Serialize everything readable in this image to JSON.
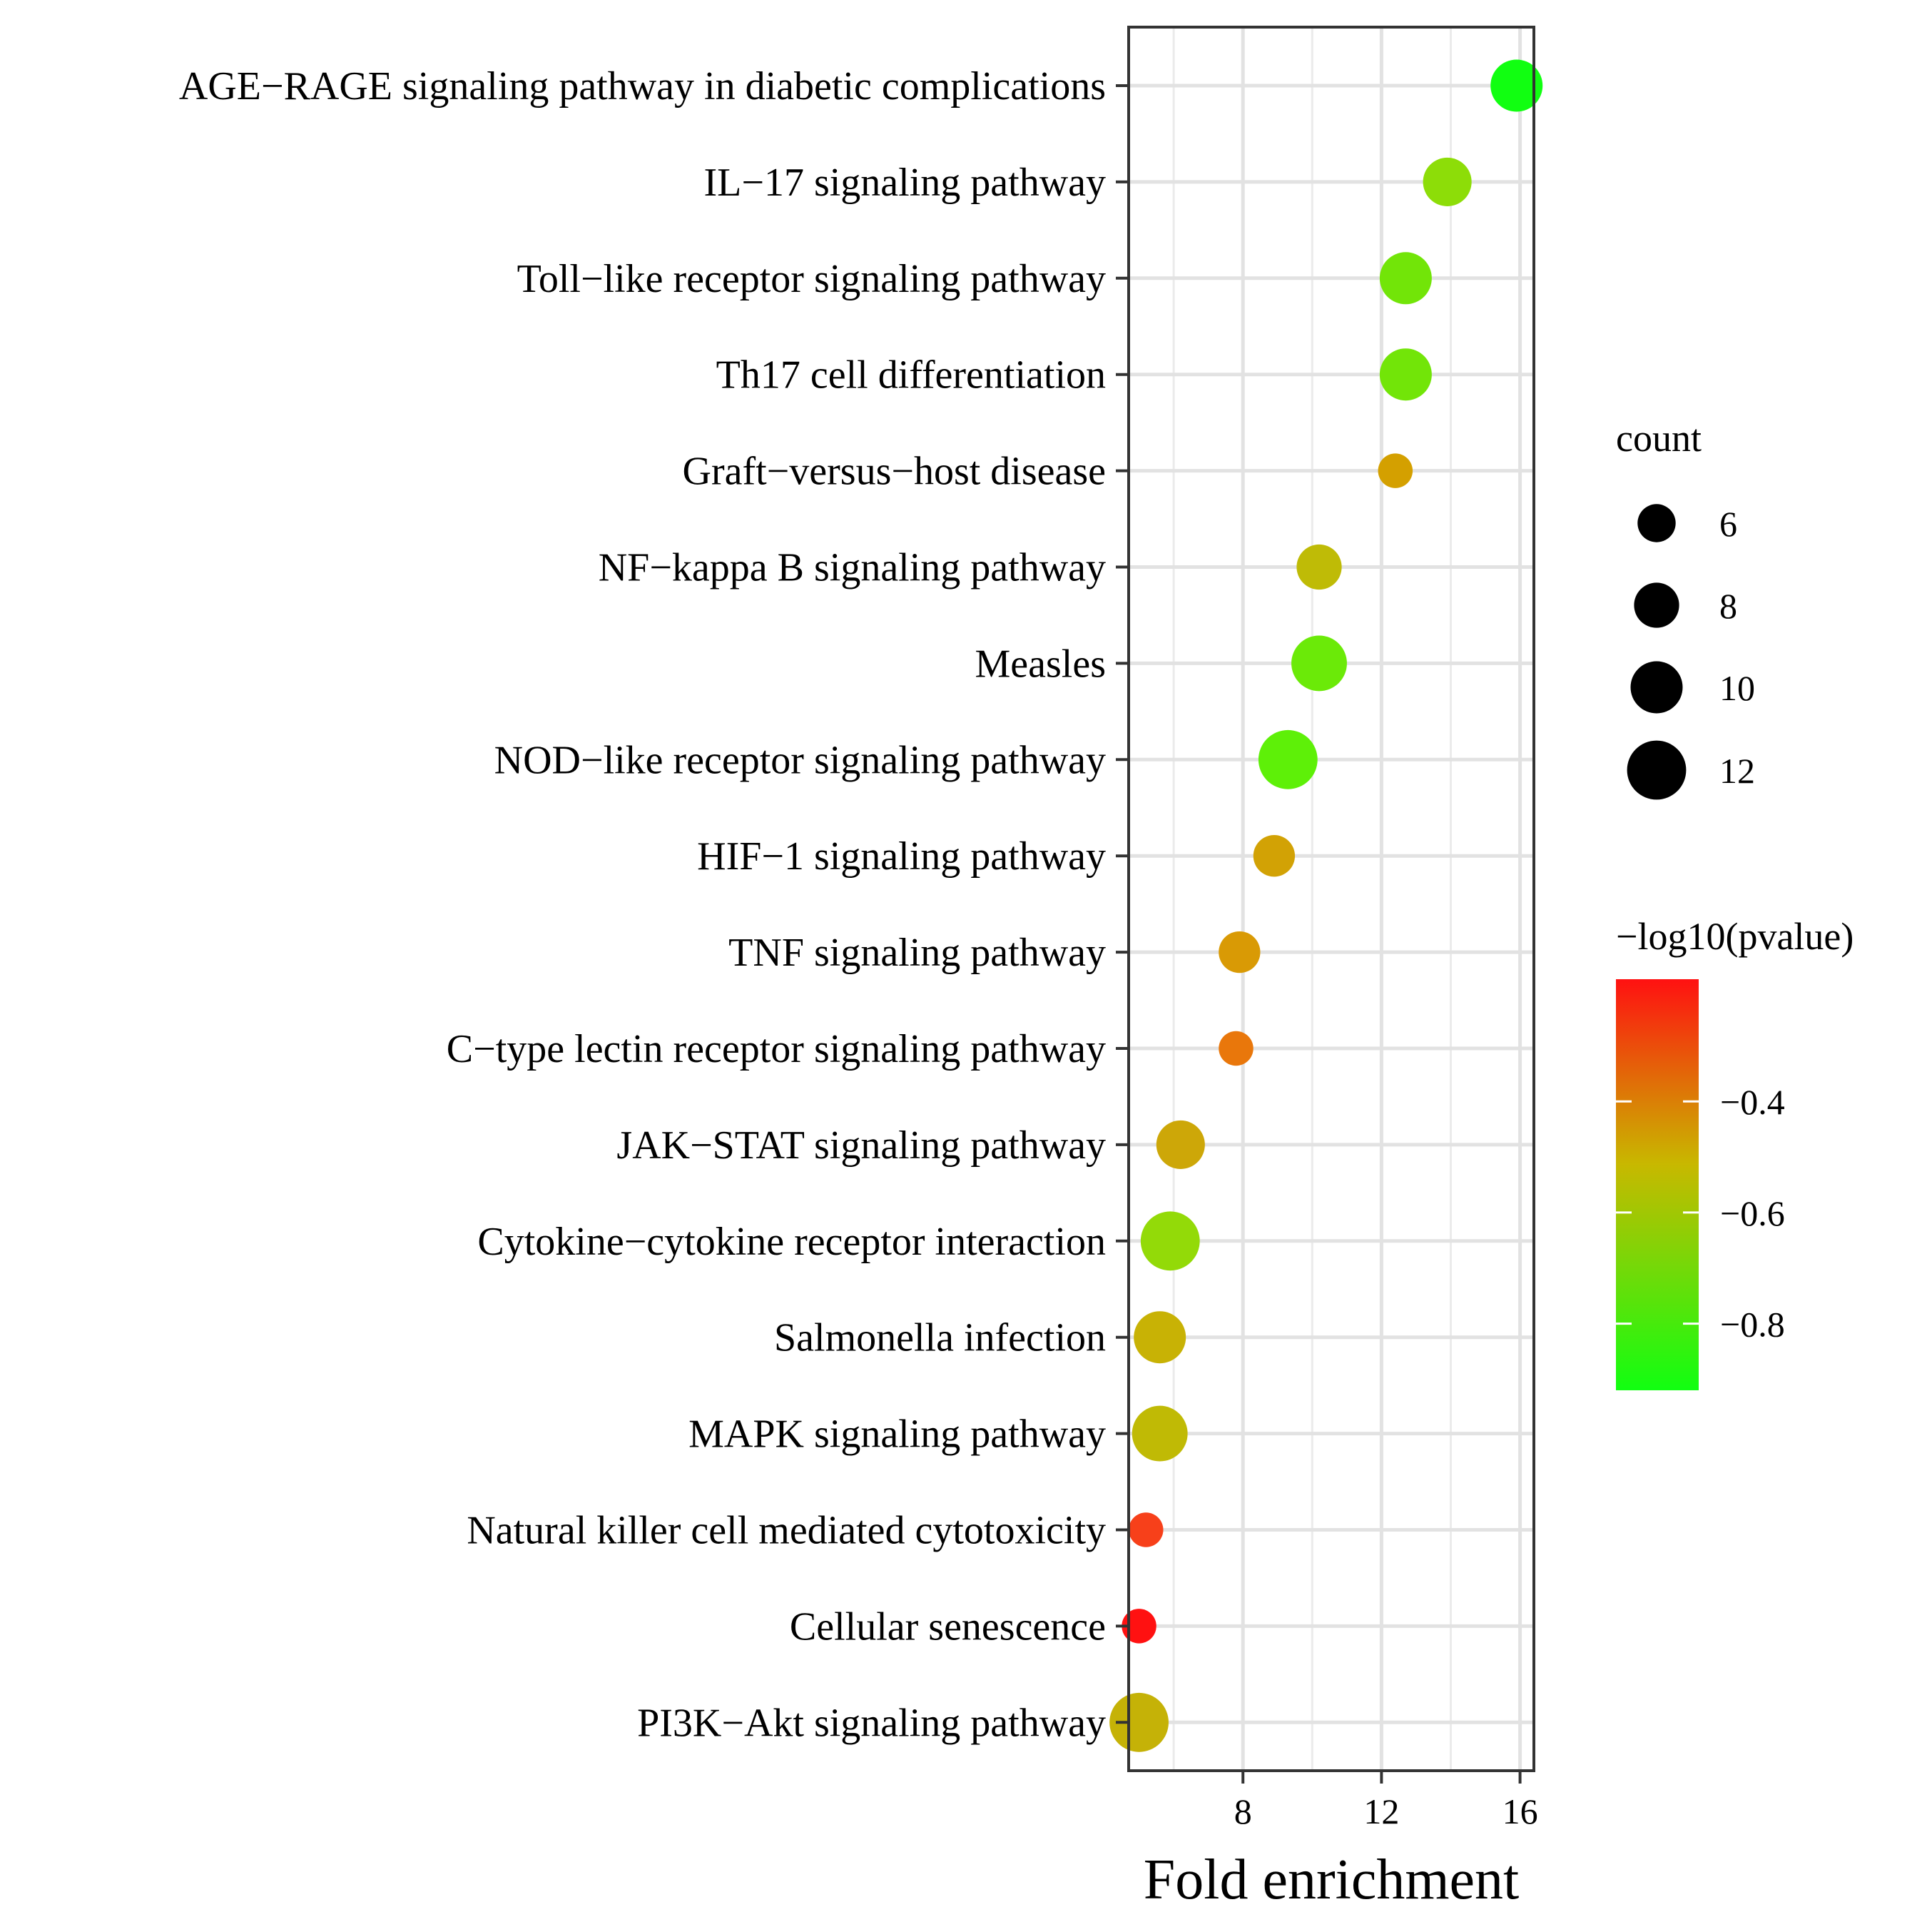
{
  "chart_data": {
    "type": "scatter",
    "title": "",
    "xlabel": "Fold enrichment",
    "ylabel": "",
    "xlim": [
      4.7,
      16.4
    ],
    "x_ticks": [
      {
        "value": 8,
        "label": "8"
      },
      {
        "value": 12,
        "label": "12"
      },
      {
        "value": 16,
        "label": "16"
      }
    ],
    "grid": true,
    "points": [
      {
        "category": "AGE−RAGE signaling pathway in diabetic complications",
        "fold_enrichment": 15.9,
        "count": 10,
        "neg_log10_pvalue": -0.92,
        "color": "#11ff11"
      },
      {
        "category": "IL−17 signaling pathway",
        "fold_enrichment": 13.9,
        "count": 9,
        "neg_log10_pvalue": -0.78,
        "color": "#8ddd08"
      },
      {
        "category": "Toll−like receptor signaling pathway",
        "fold_enrichment": 12.7,
        "count": 10,
        "neg_log10_pvalue": -0.82,
        "color": "#72e508"
      },
      {
        "category": "Th17 cell differentiation",
        "fold_enrichment": 12.7,
        "count": 10,
        "neg_log10_pvalue": -0.82,
        "color": "#72e508"
      },
      {
        "category": "Graft−versus−host disease",
        "fold_enrichment": 12.4,
        "count": 5,
        "neg_log10_pvalue": -0.45,
        "color": "#d4a000"
      },
      {
        "category": "NF−kappa B signaling pathway",
        "fold_enrichment": 10.2,
        "count": 8,
        "neg_log10_pvalue": -0.65,
        "color": "#bfbb06"
      },
      {
        "category": "Measles",
        "fold_enrichment": 10.2,
        "count": 11,
        "neg_log10_pvalue": -0.84,
        "color": "#6bea08"
      },
      {
        "category": "NOD−like receptor signaling pathway",
        "fold_enrichment": 9.3,
        "count": 12,
        "neg_log10_pvalue": -0.87,
        "color": "#5ef008"
      },
      {
        "category": "HIF−1 signaling pathway",
        "fold_enrichment": 8.9,
        "count": 7,
        "neg_log10_pvalue": -0.46,
        "color": "#d2a205"
      },
      {
        "category": "TNF signaling pathway",
        "fold_enrichment": 7.9,
        "count": 7,
        "neg_log10_pvalue": -0.42,
        "color": "#d99a05"
      },
      {
        "category": "C−type lectin receptor signaling pathway",
        "fold_enrichment": 7.8,
        "count": 5,
        "neg_log10_pvalue": -0.34,
        "color": "#e9770b"
      },
      {
        "category": "JAK−STAT signaling pathway",
        "fold_enrichment": 6.2,
        "count": 9,
        "neg_log10_pvalue": -0.55,
        "color": "#cda708"
      },
      {
        "category": "Cytokine−cytokine receptor interaction",
        "fold_enrichment": 5.9,
        "count": 12,
        "neg_log10_pvalue": -0.76,
        "color": "#93da08"
      },
      {
        "category": "Salmonella infection",
        "fold_enrichment": 5.6,
        "count": 10,
        "neg_log10_pvalue": -0.6,
        "color": "#c8b205"
      },
      {
        "category": "MAPK signaling pathway",
        "fold_enrichment": 5.6,
        "count": 11,
        "neg_log10_pvalue": -0.64,
        "color": "#c0ba05"
      },
      {
        "category": "Natural killer cell mediated cytotoxicity",
        "fold_enrichment": 5.2,
        "count": 5,
        "neg_log10_pvalue": -0.24,
        "color": "#f7401a"
      },
      {
        "category": "Cellular senescence",
        "fold_enrichment": 5.0,
        "count": 5,
        "neg_log10_pvalue": -0.2,
        "color": "#ff1111"
      },
      {
        "category": "PI3K−Akt signaling pathway",
        "fold_enrichment": 5.0,
        "count": 12,
        "neg_log10_pvalue": -0.6,
        "color": "#c5b207"
      }
    ],
    "size_legend": {
      "title": "count",
      "entries": [
        {
          "value": 6,
          "label": "6"
        },
        {
          "value": 8,
          "label": "8"
        },
        {
          "value": 10,
          "label": "10"
        },
        {
          "value": 12,
          "label": "12"
        }
      ]
    },
    "color_legend": {
      "title": "−log10(pvalue)",
      "range": [
        -0.92,
        -0.18
      ],
      "colors": [
        "#11ff11",
        "#c8b800",
        "#ff1111"
      ],
      "ticks": [
        {
          "value": -0.4,
          "label": "−0.4"
        },
        {
          "value": -0.6,
          "label": "−0.6"
        },
        {
          "value": -0.8,
          "label": "−0.8"
        }
      ]
    }
  }
}
